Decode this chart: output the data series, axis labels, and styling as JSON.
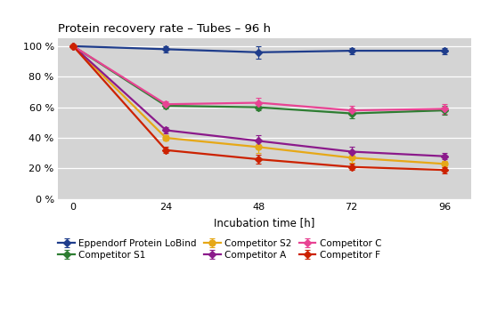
{
  "title": "Protein recovery rate – Tubes – 96 h",
  "xlabel": "Incubation time [h]",
  "x_values": [
    0,
    24,
    48,
    72,
    96
  ],
  "series": [
    {
      "label": "Eppendorf Protein LoBind",
      "color": "#1f3d8c",
      "marker": "D",
      "markersize": 4,
      "linewidth": 1.6,
      "y": [
        100,
        98,
        96,
        97,
        97
      ],
      "yerr": [
        1,
        2,
        4,
        2,
        2
      ]
    },
    {
      "label": "Competitor S1",
      "color": "#2e7d32",
      "marker": "D",
      "markersize": 4,
      "linewidth": 1.6,
      "y": [
        100,
        61,
        60,
        56,
        58
      ],
      "yerr": [
        1,
        2,
        2,
        3,
        3
      ]
    },
    {
      "label": "Competitor S2",
      "color": "#e6a817",
      "marker": "o",
      "markersize": 5,
      "linewidth": 1.6,
      "y": [
        100,
        40,
        34,
        27,
        23
      ],
      "yerr": [
        1,
        2,
        4,
        3,
        2
      ]
    },
    {
      "label": "Competitor A",
      "color": "#8b1a8b",
      "marker": "D",
      "markersize": 4,
      "linewidth": 1.6,
      "y": [
        100,
        45,
        38,
        31,
        28
      ],
      "yerr": [
        1,
        2,
        4,
        3,
        2
      ]
    },
    {
      "label": "Competitor C",
      "color": "#e84393",
      "marker": "D",
      "markersize": 4,
      "linewidth": 1.6,
      "y": [
        100,
        62,
        63,
        58,
        59
      ],
      "yerr": [
        1,
        2,
        3,
        3,
        3
      ]
    },
    {
      "label": "Competitor F",
      "color": "#cc2200",
      "marker": "D",
      "markersize": 4,
      "linewidth": 1.6,
      "y": [
        100,
        32,
        26,
        21,
        19
      ],
      "yerr": [
        1,
        2,
        3,
        2,
        2
      ]
    }
  ],
  "ylim": [
    0,
    105
  ],
  "yticks": [
    0,
    20,
    40,
    60,
    80,
    100
  ],
  "ytick_labels": [
    "0 %",
    "20 %",
    "40 %",
    "60 %",
    "80 %",
    "100 %"
  ],
  "xticks": [
    0,
    24,
    48,
    72,
    96
  ],
  "bg_color": "#d4d4d4",
  "fig_bg_color": "#ffffff",
  "title_fontsize": 9.5,
  "axis_fontsize": 8.5,
  "tick_fontsize": 8,
  "legend_fontsize": 7.5,
  "legend_order": [
    0,
    1,
    2,
    3,
    4,
    5
  ]
}
